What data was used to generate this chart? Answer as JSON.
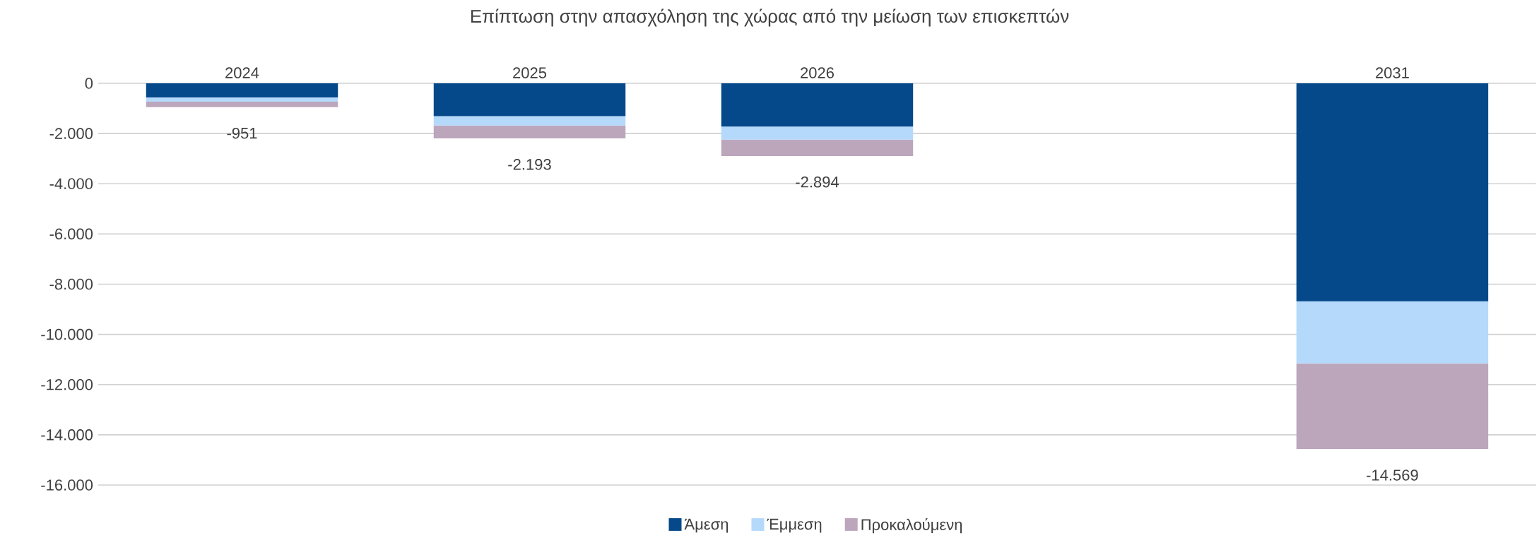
{
  "chart_data": {
    "type": "bar",
    "title": "Επίπτωση στην απασχόληση της χώρας από την μείωση των επισκεπτών",
    "categories": [
      "2024",
      "2025",
      "2026",
      null,
      "2031"
    ],
    "series": [
      {
        "name": "Άμεση",
        "color": "#05498a",
        "values": [
          -560,
          -1310,
          -1720,
          null,
          -8680
        ]
      },
      {
        "name": "Έμμεση",
        "color": "#b5d9fb",
        "values": [
          -170,
          -370,
          -520,
          null,
          -2480
        ]
      },
      {
        "name": "Προκαλούμενη",
        "color": "#bca6bc",
        "values": [
          -221,
          -513,
          -654,
          null,
          -3409
        ]
      }
    ],
    "stacked": true,
    "totals": [
      "-951",
      "-2.193",
      "-2.894",
      null,
      "-14.569"
    ],
    "ylim": [
      -16000,
      0
    ],
    "yticks": [
      {
        "value": -16000,
        "label": "-16.000"
      },
      {
        "value": -14000,
        "label": "-14.000"
      },
      {
        "value": -12000,
        "label": "-12.000"
      },
      {
        "value": -10000,
        "label": "-10.000"
      },
      {
        "value": -8000,
        "label": "-8.000"
      },
      {
        "value": -6000,
        "label": "-6.000"
      },
      {
        "value": -4000,
        "label": "-4.000"
      },
      {
        "value": -2000,
        "label": "-2.000"
      },
      0
    ],
    "grid": "y",
    "legend": "bottom"
  }
}
